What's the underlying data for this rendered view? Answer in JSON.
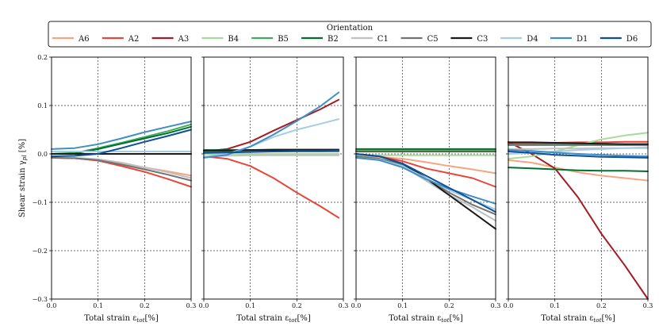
{
  "legend": {
    "title": "Orientation",
    "entries": [
      {
        "label": "A6",
        "color": "#f4a582"
      },
      {
        "label": "A2",
        "color": "#e8463b"
      },
      {
        "label": "A3",
        "color": "#a51c24"
      },
      {
        "label": "B4",
        "color": "#a6db9c"
      },
      {
        "label": "B5",
        "color": "#41ab5d"
      },
      {
        "label": "B2",
        "color": "#00702c"
      },
      {
        "label": "C1",
        "color": "#c0c0c0"
      },
      {
        "label": "C5",
        "color": "#737373"
      },
      {
        "label": "C3",
        "color": "#1a1a1a"
      },
      {
        "label": "D4",
        "color": "#a6cde2"
      },
      {
        "label": "D1",
        "color": "#3f8ec4"
      },
      {
        "label": "D6",
        "color": "#0d4f9a"
      }
    ]
  },
  "chart_data": [
    {
      "type": "line",
      "panel": 1,
      "xlabel": "Total strain ε_tot[%]",
      "ylabel": "Shear strain γ_pl [%]",
      "xlim": [
        0.0,
        0.3
      ],
      "ylim": [
        -0.3,
        0.2
      ],
      "xticks": [
        "0.0",
        "0.1",
        "0.2",
        "0.3"
      ],
      "yticks": [
        "−0.3",
        "−0.2",
        "−0.1",
        "0.0",
        "0.1",
        "0.2"
      ],
      "grid": "dashed",
      "x": [
        0,
        0.05,
        0.1,
        0.15,
        0.2,
        0.25,
        0.3
      ],
      "series": [
        {
          "name": "A6",
          "values": [
            -0.008,
            -0.009,
            -0.012,
            -0.02,
            -0.028,
            -0.036,
            -0.045
          ]
        },
        {
          "name": "A2",
          "values": [
            -0.008,
            -0.009,
            -0.014,
            -0.025,
            -0.037,
            -0.052,
            -0.068
          ]
        },
        {
          "name": "A3",
          "values": [
            0.0,
            0.0,
            0.0,
            0.0,
            0.0,
            0.0,
            0.0
          ]
        },
        {
          "name": "B4",
          "values": [
            0.005,
            0.005,
            0.005,
            0.005,
            0.005,
            0.005,
            0.005
          ]
        },
        {
          "name": "B5",
          "values": [
            0.0,
            0.002,
            0.012,
            0.023,
            0.035,
            0.047,
            0.061
          ]
        },
        {
          "name": "B2",
          "values": [
            0.0,
            0.001,
            0.01,
            0.021,
            0.032,
            0.043,
            0.056
          ]
        },
        {
          "name": "C1",
          "values": [
            -0.008,
            -0.008,
            -0.011,
            -0.018,
            -0.028,
            -0.038,
            -0.05
          ]
        },
        {
          "name": "C5",
          "values": [
            -0.008,
            -0.009,
            -0.013,
            -0.022,
            -0.032,
            -0.043,
            -0.055
          ]
        },
        {
          "name": "C3",
          "values": [
            0.0,
            0.0,
            0.0,
            0.0,
            0.0,
            0.0,
            0.0
          ]
        },
        {
          "name": "D4",
          "values": [
            0.005,
            0.005,
            0.005,
            0.005,
            0.005,
            0.005,
            0.005
          ]
        },
        {
          "name": "D1",
          "values": [
            0.01,
            0.012,
            0.02,
            0.032,
            0.045,
            0.056,
            0.067
          ]
        },
        {
          "name": "D6",
          "values": [
            -0.005,
            -0.004,
            0.0,
            0.012,
            0.025,
            0.037,
            0.05
          ]
        }
      ]
    },
    {
      "type": "line",
      "panel": 2,
      "xlabel": "Total strain ε_tot[%]",
      "xlim": [
        0.0,
        0.3
      ],
      "ylim": [
        -0.3,
        0.2
      ],
      "xticks": [
        "0.0",
        "0.1",
        "0.2",
        "0.3"
      ],
      "grid": "dashed",
      "x": [
        0,
        0.05,
        0.1,
        0.15,
        0.2,
        0.25,
        0.29
      ],
      "series": [
        {
          "name": "A6",
          "values": [
            0.007,
            0.007,
            0.008,
            0.008,
            0.008,
            0.008,
            0.008
          ]
        },
        {
          "name": "A2",
          "values": [
            -0.005,
            -0.01,
            -0.025,
            -0.05,
            -0.08,
            -0.108,
            -0.132
          ]
        },
        {
          "name": "A3",
          "values": [
            0.005,
            0.01,
            0.025,
            0.048,
            0.07,
            0.092,
            0.112
          ]
        },
        {
          "name": "B4",
          "values": [
            0.0,
            0.0,
            0.0,
            0.0,
            0.0,
            0.0,
            0.0
          ]
        },
        {
          "name": "B5",
          "values": [
            0.005,
            0.005,
            0.005,
            0.005,
            0.005,
            0.005,
            0.005
          ]
        },
        {
          "name": "B2",
          "values": [
            0.008,
            0.008,
            0.008,
            0.009,
            0.009,
            0.009,
            0.009
          ]
        },
        {
          "name": "C1",
          "values": [
            -0.005,
            -0.004,
            -0.003,
            -0.003,
            -0.003,
            -0.003,
            -0.003
          ]
        },
        {
          "name": "C5",
          "values": [
            0.005,
            0.005,
            0.006,
            0.006,
            0.007,
            0.007,
            0.008
          ]
        },
        {
          "name": "C3",
          "values": [
            0.007,
            0.007,
            0.008,
            0.008,
            0.008,
            0.008,
            0.008
          ]
        },
        {
          "name": "D4",
          "values": [
            -0.005,
            0.0,
            0.015,
            0.035,
            0.05,
            0.062,
            0.072
          ]
        },
        {
          "name": "D1",
          "values": [
            -0.008,
            -0.002,
            0.015,
            0.04,
            0.068,
            0.098,
            0.127
          ]
        },
        {
          "name": "D6",
          "values": [
            0.002,
            0.003,
            0.004,
            0.005,
            0.006,
            0.006,
            0.007
          ]
        }
      ]
    },
    {
      "type": "line",
      "panel": 3,
      "xlabel": "Total strain ε_tot[%]",
      "xlim": [
        0.0,
        0.3
      ],
      "ylim": [
        -0.3,
        0.2
      ],
      "xticks": [
        "0.0",
        "0.1",
        "0.2",
        "0.3"
      ],
      "grid": "dashed",
      "x": [
        0,
        0.05,
        0.1,
        0.15,
        0.2,
        0.25,
        0.3
      ],
      "series": [
        {
          "name": "A6",
          "values": [
            -0.005,
            -0.006,
            -0.01,
            -0.017,
            -0.025,
            -0.032,
            -0.04
          ]
        },
        {
          "name": "A2",
          "values": [
            0.0,
            -0.005,
            -0.015,
            -0.03,
            -0.04,
            -0.05,
            -0.068
          ]
        },
        {
          "name": "A3",
          "values": [
            0.005,
            0.005,
            0.005,
            0.005,
            0.005,
            0.005,
            0.005
          ]
        },
        {
          "name": "B4",
          "values": [
            -0.003,
            -0.003,
            -0.003,
            -0.003,
            -0.003,
            -0.003,
            -0.003
          ]
        },
        {
          "name": "B5",
          "values": [
            0.007,
            0.007,
            0.007,
            0.007,
            0.007,
            0.007,
            0.007
          ]
        },
        {
          "name": "B2",
          "values": [
            0.01,
            0.01,
            0.01,
            0.01,
            0.01,
            0.01,
            0.01
          ]
        },
        {
          "name": "C1",
          "values": [
            -0.005,
            -0.01,
            -0.025,
            -0.055,
            -0.085,
            -0.11,
            -0.138
          ]
        },
        {
          "name": "C5",
          "values": [
            -0.005,
            -0.01,
            -0.022,
            -0.05,
            -0.08,
            -0.105,
            -0.125
          ]
        },
        {
          "name": "C3",
          "values": [
            0.0,
            -0.005,
            -0.02,
            -0.05,
            -0.085,
            -0.12,
            -0.155
          ]
        },
        {
          "name": "D4",
          "values": [
            -0.008,
            -0.012,
            -0.025,
            -0.05,
            -0.075,
            -0.095,
            -0.115
          ]
        },
        {
          "name": "D1",
          "values": [
            -0.008,
            -0.013,
            -0.028,
            -0.052,
            -0.072,
            -0.088,
            -0.103
          ]
        },
        {
          "name": "D6",
          "values": [
            0.0,
            -0.005,
            -0.02,
            -0.045,
            -0.07,
            -0.095,
            -0.12
          ]
        }
      ]
    },
    {
      "type": "line",
      "panel": 4,
      "xlabel": "Total strain ε_tot[%]",
      "xlim": [
        0.0,
        0.3
      ],
      "ylim": [
        -0.3,
        0.2
      ],
      "xticks": [
        "0.0",
        "0.1",
        "0.2",
        "0.3"
      ],
      "grid": "dashed",
      "x": [
        0,
        0.05,
        0.1,
        0.15,
        0.2,
        0.25,
        0.3
      ],
      "series": [
        {
          "name": "A6",
          "values": [
            -0.013,
            -0.018,
            -0.028,
            -0.038,
            -0.045,
            -0.05,
            -0.055
          ]
        },
        {
          "name": "A2",
          "values": [
            0.022,
            0.023,
            0.023,
            0.024,
            0.024,
            0.025,
            0.025
          ]
        },
        {
          "name": "A3",
          "values": [
            0.025,
            0.0,
            -0.03,
            -0.09,
            -0.165,
            -0.23,
            -0.3
          ]
        },
        {
          "name": "B4",
          "values": [
            -0.01,
            -0.005,
            0.005,
            0.018,
            0.03,
            0.038,
            0.044
          ]
        },
        {
          "name": "B5",
          "values": [
            0.018,
            0.018,
            0.018,
            0.018,
            0.018,
            0.018,
            0.018
          ]
        },
        {
          "name": "B2",
          "values": [
            -0.028,
            -0.03,
            -0.032,
            -0.034,
            -0.035,
            -0.035,
            -0.036
          ]
        },
        {
          "name": "C1",
          "values": [
            0.01,
            0.01,
            0.011,
            0.011,
            0.012,
            0.012,
            0.012
          ]
        },
        {
          "name": "C5",
          "values": [
            0.02,
            0.02,
            0.02,
            0.02,
            0.02,
            0.02,
            0.02
          ]
        },
        {
          "name": "C3",
          "values": [
            0.024,
            0.024,
            0.023,
            0.022,
            0.021,
            0.02,
            0.02
          ]
        },
        {
          "name": "D4",
          "values": [
            0.0,
            0.002,
            0.005,
            0.008,
            0.01,
            0.012,
            0.014
          ]
        },
        {
          "name": "D1",
          "values": [
            0.008,
            0.006,
            0.003,
            0.0,
            -0.002,
            -0.004,
            -0.005
          ]
        },
        {
          "name": "D6",
          "values": [
            0.005,
            0.002,
            -0.002,
            -0.004,
            -0.006,
            -0.007,
            -0.008
          ]
        }
      ]
    }
  ]
}
